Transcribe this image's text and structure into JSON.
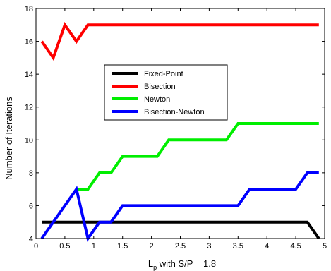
{
  "chart_data": {
    "type": "line",
    "xlabel_main": "L",
    "xlabel_sub": "p",
    "xlabel_rest": " with S/P = 1.8",
    "ylabel": "Number of Iterations",
    "xlim": [
      0,
      5
    ],
    "ylim": [
      4,
      18
    ],
    "xticks": [
      0,
      0.5,
      1,
      1.5,
      2,
      2.5,
      3,
      3.5,
      4,
      4.5,
      5
    ],
    "xtick_labels": [
      "0",
      "0.5",
      "1",
      "1.5",
      "2",
      "2.5",
      "3",
      "3.5",
      "4",
      "4.5",
      "5"
    ],
    "yticks": [
      4,
      6,
      8,
      10,
      12,
      14,
      16,
      18
    ],
    "ytick_labels": [
      "4",
      "6",
      "8",
      "10",
      "12",
      "14",
      "16",
      "18"
    ],
    "grid": false,
    "legend_position": "center",
    "series": [
      {
        "name": "Fixed-Point",
        "color": "#000000",
        "points": [
          [
            0.1,
            5
          ],
          [
            4.7,
            5
          ],
          [
            4.9,
            4
          ]
        ]
      },
      {
        "name": "Bisection",
        "color": "#ff0000",
        "points": [
          [
            0.1,
            16
          ],
          [
            0.3,
            15
          ],
          [
            0.5,
            17
          ],
          [
            0.7,
            16
          ],
          [
            0.9,
            17
          ],
          [
            4.9,
            17
          ]
        ]
      },
      {
        "name": "Newton",
        "color": "#00ee00",
        "points": [
          [
            0.7,
            7
          ],
          [
            0.9,
            7
          ],
          [
            1.1,
            8
          ],
          [
            1.3,
            8
          ],
          [
            1.5,
            9
          ],
          [
            2.1,
            9
          ],
          [
            2.3,
            10
          ],
          [
            3.3,
            10
          ],
          [
            3.5,
            11
          ],
          [
            4.9,
            11
          ]
        ]
      },
      {
        "name": "Bisection-Newton",
        "color": "#0000ff",
        "points": [
          [
            0.1,
            4
          ],
          [
            0.3,
            5
          ],
          [
            0.5,
            6
          ],
          [
            0.7,
            7
          ],
          [
            0.9,
            4
          ],
          [
            1.1,
            5
          ],
          [
            1.3,
            5
          ],
          [
            1.5,
            6
          ],
          [
            3.5,
            6
          ],
          [
            3.7,
            7
          ],
          [
            4.5,
            7
          ],
          [
            4.7,
            8
          ],
          [
            4.9,
            8
          ]
        ]
      }
    ]
  }
}
